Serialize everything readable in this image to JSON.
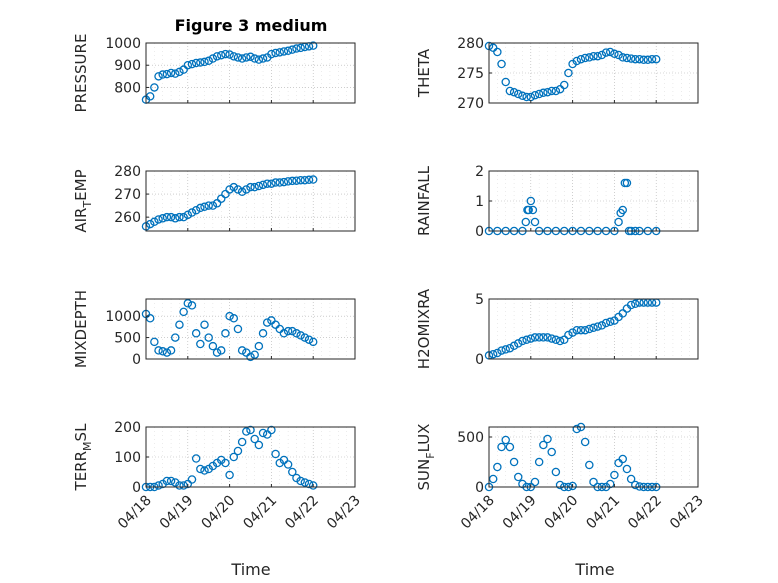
{
  "figure": {
    "title": "Figure 3 medium",
    "x_label": "Time",
    "x_tick_labels": [
      "04/18",
      "04/19",
      "04/20",
      "04/21",
      "04/22",
      "04/23"
    ]
  },
  "colors": {
    "marker": "#0072BD",
    "axis": "#262626",
    "grid": "#b0b0b0"
  },
  "chart_data": [
    {
      "type": "scatter",
      "name": "pressure",
      "ylabel": "PRESSURE",
      "ylim": [
        730,
        1000
      ],
      "yticks": [
        800,
        900,
        1000
      ],
      "x": [
        0,
        0.1,
        0.2,
        0.3,
        0.4,
        0.5,
        0.6,
        0.7,
        0.8,
        0.9,
        1,
        1.1,
        1.2,
        1.3,
        1.4,
        1.5,
        1.6,
        1.7,
        1.8,
        1.9,
        2,
        2.1,
        2.2,
        2.3,
        2.4,
        2.5,
        2.6,
        2.7,
        2.8,
        2.9,
        3,
        3.1,
        3.2,
        3.3,
        3.4,
        3.5,
        3.6,
        3.7,
        3.8,
        3.9,
        4
      ],
      "y": [
        745,
        760,
        800,
        850,
        858,
        860,
        865,
        862,
        870,
        880,
        900,
        905,
        910,
        912,
        915,
        920,
        930,
        940,
        945,
        950,
        948,
        940,
        935,
        930,
        935,
        938,
        930,
        925,
        930,
        935,
        950,
        955,
        958,
        962,
        965,
        970,
        975,
        978,
        982,
        985,
        988
      ]
    },
    {
      "type": "scatter",
      "name": "theta",
      "ylabel": "THETA",
      "ylim": [
        270,
        280
      ],
      "yticks": [
        270,
        275,
        280
      ],
      "x": [
        0,
        0.1,
        0.2,
        0.3,
        0.4,
        0.5,
        0.6,
        0.7,
        0.8,
        0.9,
        1,
        1.1,
        1.2,
        1.3,
        1.4,
        1.5,
        1.6,
        1.7,
        1.8,
        1.9,
        2,
        2.1,
        2.2,
        2.3,
        2.4,
        2.5,
        2.6,
        2.7,
        2.8,
        2.9,
        3,
        3.1,
        3.2,
        3.3,
        3.4,
        3.5,
        3.6,
        3.7,
        3.8,
        3.9,
        4
      ],
      "y": [
        279.5,
        279.2,
        278.5,
        276.5,
        273.5,
        272,
        271.8,
        271.5,
        271.2,
        271,
        271,
        271.3,
        271.5,
        271.7,
        271.8,
        272,
        272,
        272.3,
        273,
        275,
        276.5,
        277,
        277.3,
        277.5,
        277.6,
        277.8,
        277.8,
        278,
        278.4,
        278.5,
        278.2,
        278,
        277.6,
        277.5,
        277.4,
        277.3,
        277.3,
        277.2,
        277.2,
        277.3,
        277.3
      ]
    },
    {
      "type": "scatter",
      "name": "air_temp",
      "ylabel": "AIR_TEMP",
      "ylim": [
        254,
        280
      ],
      "yticks": [
        260,
        270,
        280
      ],
      "x": [
        0,
        0.1,
        0.2,
        0.3,
        0.4,
        0.5,
        0.6,
        0.7,
        0.8,
        0.9,
        1,
        1.1,
        1.2,
        1.3,
        1.4,
        1.5,
        1.6,
        1.7,
        1.8,
        1.9,
        2,
        2.1,
        2.2,
        2.3,
        2.4,
        2.5,
        2.6,
        2.7,
        2.8,
        2.9,
        3,
        3.1,
        3.2,
        3.3,
        3.4,
        3.5,
        3.6,
        3.7,
        3.8,
        3.9,
        4
      ],
      "y": [
        256,
        257,
        258,
        259,
        259.5,
        260,
        260,
        259.5,
        260,
        260,
        261,
        262,
        263,
        264,
        264.5,
        265,
        265,
        266,
        268,
        270,
        272,
        273,
        272,
        271,
        272,
        273,
        273,
        273.5,
        274,
        274.5,
        274.5,
        275,
        275,
        275.2,
        275.5,
        275.7,
        275.8,
        276,
        276,
        276.2,
        276.3
      ]
    },
    {
      "type": "scatter",
      "name": "rainfall",
      "ylabel": "RAINFALL",
      "ylim": [
        0,
        2
      ],
      "yticks": [
        0,
        1,
        2
      ],
      "x": [
        0,
        0.2,
        0.4,
        0.6,
        0.8,
        0.88,
        0.92,
        0.95,
        1,
        1.05,
        1.1,
        1.2,
        1.4,
        1.6,
        1.8,
        2,
        2.2,
        2.4,
        2.6,
        2.8,
        3,
        3.1,
        3.15,
        3.2,
        3.25,
        3.3,
        3.35,
        3.4,
        3.5,
        3.6,
        3.8,
        4
      ],
      "y": [
        0,
        0,
        0,
        0,
        0,
        0.3,
        0.7,
        0.7,
        1.0,
        0.7,
        0.3,
        0,
        0,
        0,
        0,
        0,
        0,
        0,
        0,
        0,
        0,
        0.3,
        0.6,
        0.7,
        1.6,
        1.6,
        0,
        0,
        0,
        0,
        0,
        0
      ]
    },
    {
      "type": "scatter",
      "name": "mixdepth",
      "ylabel": "MIXDEPTH",
      "ylim": [
        0,
        1400
      ],
      "yticks": [
        0,
        500,
        1000
      ],
      "x": [
        0,
        0.1,
        0.2,
        0.3,
        0.4,
        0.5,
        0.6,
        0.7,
        0.8,
        0.9,
        1,
        1.1,
        1.2,
        1.3,
        1.4,
        1.5,
        1.6,
        1.7,
        1.8,
        1.9,
        2,
        2.1,
        2.2,
        2.3,
        2.4,
        2.5,
        2.6,
        2.7,
        2.8,
        2.9,
        3,
        3.1,
        3.2,
        3.3,
        3.4,
        3.5,
        3.6,
        3.7,
        3.8,
        3.9,
        4
      ],
      "y": [
        1050,
        950,
        400,
        200,
        180,
        150,
        200,
        500,
        800,
        1100,
        1300,
        1250,
        600,
        350,
        800,
        500,
        300,
        150,
        200,
        600,
        1000,
        950,
        700,
        200,
        150,
        50,
        100,
        300,
        600,
        850,
        900,
        800,
        700,
        600,
        650,
        650,
        600,
        550,
        500,
        450,
        400
      ]
    },
    {
      "type": "scatter",
      "name": "h2omixra",
      "ylabel": "H2OMIXRA",
      "ylim": [
        0,
        5
      ],
      "yticks": [
        0,
        5
      ],
      "x": [
        0,
        0.1,
        0.2,
        0.3,
        0.4,
        0.5,
        0.6,
        0.7,
        0.8,
        0.9,
        1,
        1.1,
        1.2,
        1.3,
        1.4,
        1.5,
        1.6,
        1.7,
        1.8,
        1.9,
        2,
        2.1,
        2.2,
        2.3,
        2.4,
        2.5,
        2.6,
        2.7,
        2.8,
        2.9,
        3,
        3.1,
        3.2,
        3.3,
        3.4,
        3.5,
        3.6,
        3.7,
        3.8,
        3.9,
        4
      ],
      "y": [
        0.3,
        0.4,
        0.5,
        0.7,
        0.8,
        0.9,
        1.1,
        1.3,
        1.5,
        1.6,
        1.7,
        1.8,
        1.8,
        1.8,
        1.8,
        1.7,
        1.6,
        1.5,
        1.6,
        2.0,
        2.2,
        2.4,
        2.4,
        2.4,
        2.5,
        2.6,
        2.7,
        2.8,
        3.0,
        3.1,
        3.2,
        3.5,
        3.8,
        4.2,
        4.5,
        4.6,
        4.7,
        4.7,
        4.7,
        4.7,
        4.7
      ]
    },
    {
      "type": "scatter",
      "name": "terr_msl",
      "ylabel": "TERR_MSL",
      "ylim": [
        0,
        200
      ],
      "yticks": [
        0,
        100,
        200
      ],
      "x": [
        0,
        0.1,
        0.2,
        0.3,
        0.4,
        0.5,
        0.6,
        0.7,
        0.8,
        0.9,
        1,
        1.1,
        1.2,
        1.3,
        1.4,
        1.5,
        1.6,
        1.7,
        1.8,
        1.9,
        2,
        2.1,
        2.2,
        2.3,
        2.4,
        2.5,
        2.6,
        2.7,
        2.8,
        2.9,
        3,
        3.1,
        3.2,
        3.3,
        3.4,
        3.5,
        3.6,
        3.7,
        3.8,
        3.9,
        4
      ],
      "y": [
        0,
        0,
        0,
        5,
        10,
        20,
        20,
        15,
        5,
        5,
        10,
        25,
        95,
        60,
        55,
        60,
        70,
        80,
        90,
        80,
        40,
        100,
        120,
        150,
        185,
        190,
        160,
        140,
        180,
        175,
        190,
        110,
        80,
        90,
        75,
        50,
        30,
        20,
        15,
        10,
        5
      ]
    },
    {
      "type": "scatter",
      "name": "sun_flux",
      "ylabel": "SUN_FLUX",
      "ylim": [
        0,
        600
      ],
      "yticks": [
        0,
        500
      ],
      "x": [
        0,
        0.1,
        0.2,
        0.3,
        0.4,
        0.5,
        0.6,
        0.7,
        0.8,
        0.9,
        1,
        1.1,
        1.2,
        1.3,
        1.4,
        1.5,
        1.6,
        1.7,
        1.8,
        1.9,
        2,
        2.1,
        2.2,
        2.3,
        2.4,
        2.5,
        2.6,
        2.7,
        2.8,
        2.9,
        3,
        3.1,
        3.2,
        3.3,
        3.4,
        3.5,
        3.6,
        3.7,
        3.8,
        3.9,
        4
      ],
      "y": [
        0,
        80,
        200,
        400,
        470,
        400,
        250,
        100,
        30,
        0,
        0,
        50,
        250,
        420,
        480,
        350,
        150,
        20,
        0,
        0,
        10,
        580,
        600,
        450,
        220,
        50,
        0,
        0,
        0,
        30,
        120,
        240,
        280,
        180,
        80,
        20,
        5,
        0,
        0,
        0,
        0
      ]
    }
  ]
}
